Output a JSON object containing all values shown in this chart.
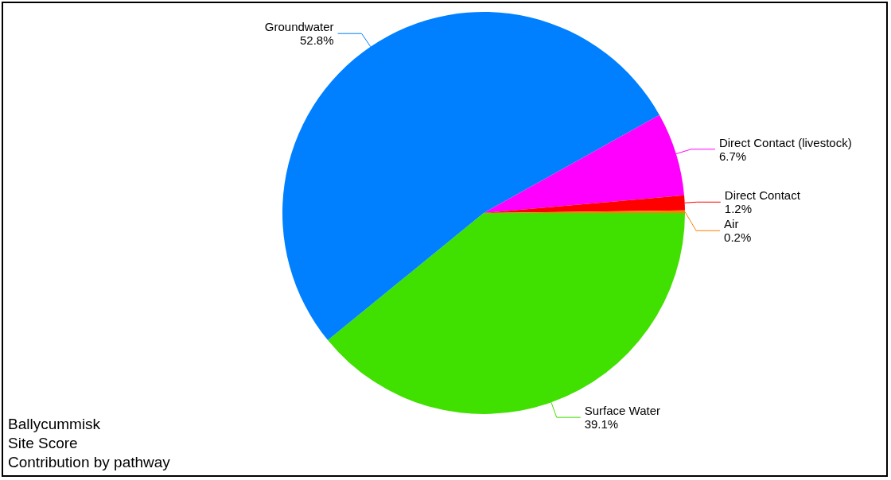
{
  "chart_data": {
    "type": "pie",
    "title": "Ballycummisk",
    "subtitle": "Site Score",
    "annotations": [
      "Contribution by pathway"
    ],
    "categories": [
      "Surface Water",
      "Groundwater",
      "Direct Contact (livestock)",
      "Direct Contact",
      "Air"
    ],
    "values": [
      39.1,
      52.8,
      6.7,
      1.2,
      0.2
    ],
    "value_labels": [
      "39.1%",
      "52.8%",
      "6.7%",
      "1.2%",
      "0.2%"
    ],
    "colors": [
      "#40e000",
      "#0080ff",
      "#ff00ff",
      "#ff0000",
      "#ff8000"
    ],
    "legend": false
  }
}
